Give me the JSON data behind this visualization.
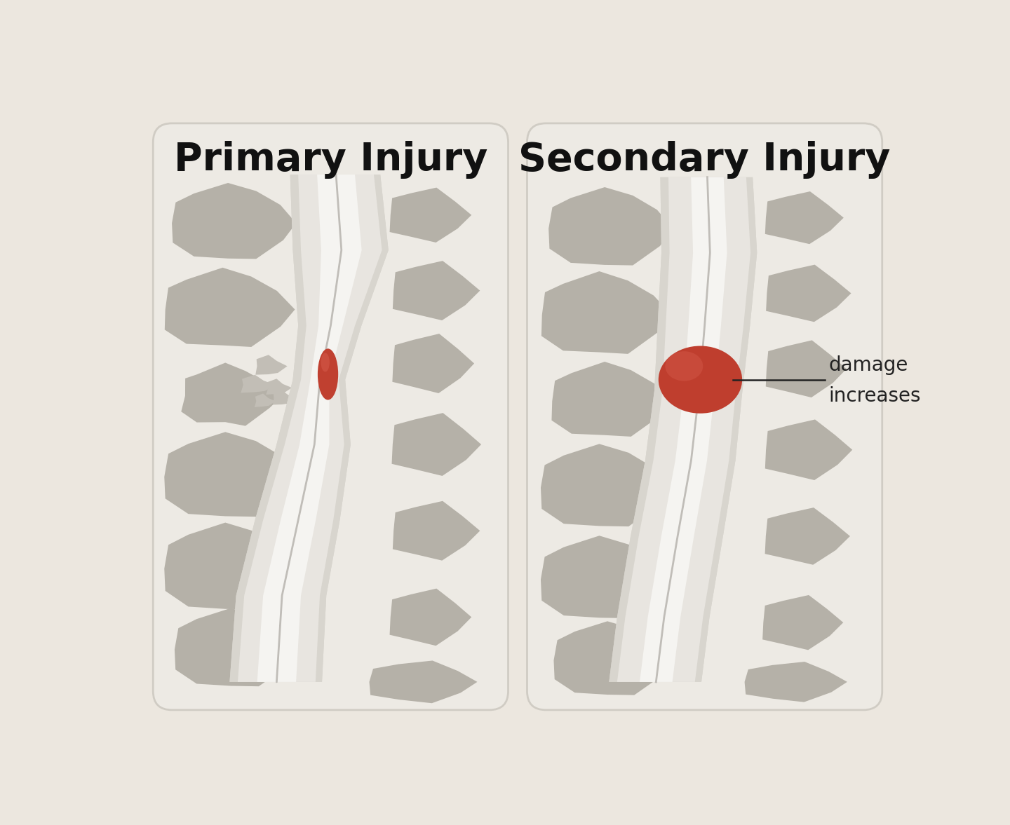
{
  "bg_color": "#ece7df",
  "panel_color": "#edeae4",
  "panel_border_color": "#d0ccc4",
  "bone_color": "#b5b1a8",
  "bone_color_light": "#c2beb6",
  "cord_outer_color": "#d8d5ce",
  "cord_mid_color": "#e8e5e0",
  "cord_inner_color": "#f5f4f1",
  "cord_line_color": "#c0bdb8",
  "injury_primary_color": "#c04030",
  "injury_secondary_color": "#bf3e2e",
  "injury_highlight": "#d05545",
  "title_color": "#111111",
  "annotation_color": "#222222",
  "title_left": "Primary Injury",
  "title_right": "Secondary Injury",
  "annotation_text_1": "damage",
  "annotation_text_2": "increases"
}
